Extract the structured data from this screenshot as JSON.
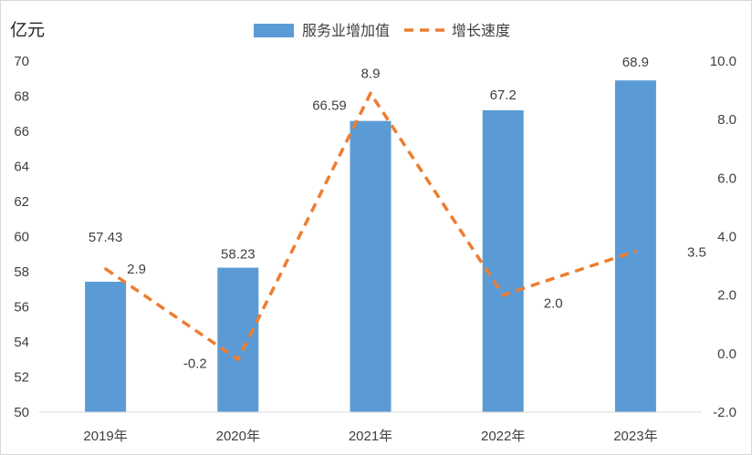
{
  "chart_data": {
    "type": "bar",
    "unit_label": "亿元",
    "categories": [
      "2019年",
      "2020年",
      "2021年",
      "2022年",
      "2023年"
    ],
    "series": [
      {
        "name": "服务业增加值",
        "kind": "bar",
        "axis": "left",
        "color": "#5b9bd5",
        "values": [
          57.43,
          58.23,
          66.59,
          67.2,
          68.9
        ],
        "labels": [
          "57.43",
          "58.23",
          "66.59",
          "67.2",
          "68.9"
        ]
      },
      {
        "name": "增长速度",
        "kind": "line",
        "style": "dashed",
        "axis": "right",
        "color": "#ed7d31",
        "values": [
          2.9,
          -0.2,
          8.9,
          2.0,
          3.5
        ],
        "labels": [
          "2.9",
          "-0.2",
          "8.9",
          "2.0",
          "3.5"
        ]
      }
    ],
    "y_left": {
      "range": [
        50,
        70
      ],
      "ticks": [
        "50",
        "52",
        "54",
        "56",
        "58",
        "60",
        "62",
        "64",
        "66",
        "68",
        "70"
      ]
    },
    "y_right": {
      "range": [
        -2.0,
        10.0
      ],
      "ticks": [
        "-2.0",
        "0.0",
        "2.0",
        "4.0",
        "6.0",
        "8.0",
        "10.0"
      ]
    },
    "grid": false,
    "legend_position": "top-center"
  }
}
